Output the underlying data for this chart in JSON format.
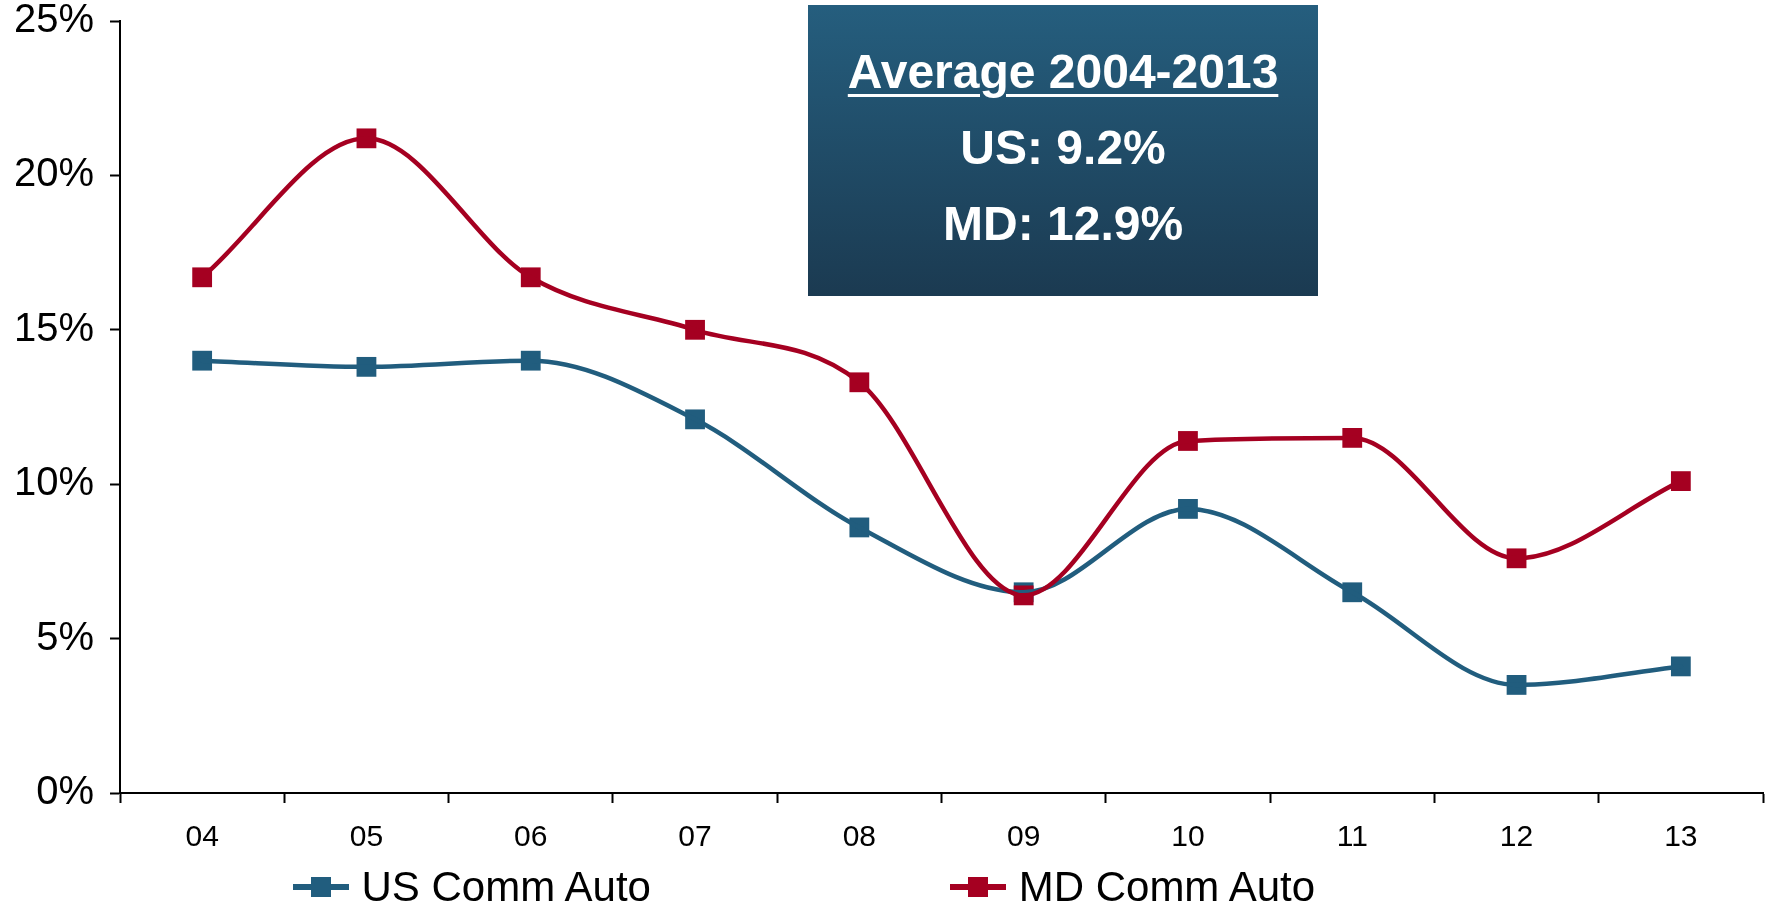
{
  "chart_data": {
    "type": "line",
    "categories": [
      "04",
      "05",
      "06",
      "07",
      "08",
      "09",
      "10",
      "11",
      "12",
      "13"
    ],
    "series": [
      {
        "name": "US Comm Auto",
        "color": "#215d7e",
        "values": [
          14.0,
          13.8,
          14.0,
          12.1,
          8.6,
          6.5,
          9.2,
          6.5,
          3.5,
          4.1
        ]
      },
      {
        "name": "MD Comm Auto",
        "color": "#a50021",
        "values": [
          16.7,
          21.2,
          16.7,
          15.0,
          13.3,
          6.4,
          11.4,
          11.5,
          7.6,
          10.1
        ]
      }
    ],
    "ylim": [
      0,
      25
    ],
    "yticks": [
      {
        "value": 0,
        "label": "0%"
      },
      {
        "value": 5,
        "label": "5%"
      },
      {
        "value": 10,
        "label": "10%"
      },
      {
        "value": 15,
        "label": "15%"
      },
      {
        "value": 20,
        "label": "20%"
      },
      {
        "value": 25,
        "label": "25%"
      }
    ],
    "annotations": [
      "Average 2004-2013",
      "US: 9.2%",
      "MD: 12.9%"
    ],
    "legend": "bottom",
    "marker": "square",
    "line_style": "solid",
    "grid": false
  }
}
